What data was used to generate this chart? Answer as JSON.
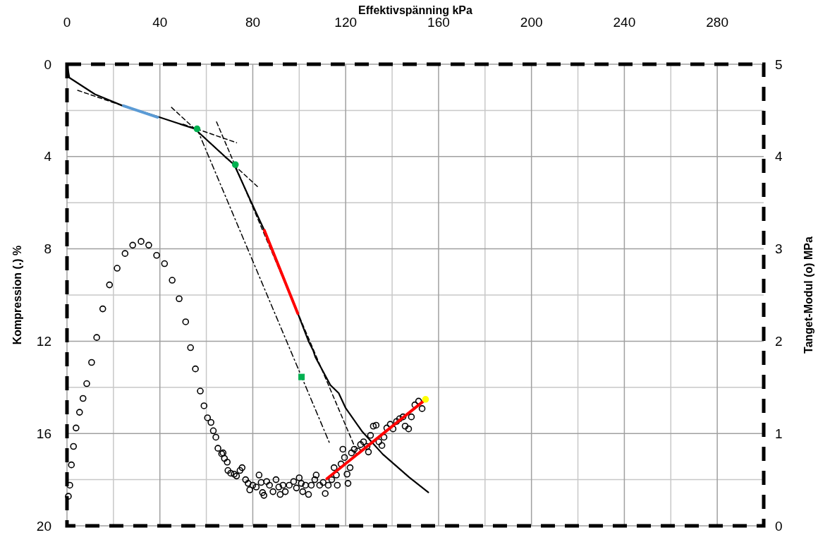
{
  "chart_data": {
    "type": "line",
    "xlabel": "Effektivspänning   kPa",
    "ylabel": "Kompression (.)   %",
    "y2label": "Tanget-Modul (o)   MPa",
    "xlim": [
      0,
      300
    ],
    "xticks": [
      0,
      40,
      80,
      120,
      160,
      200,
      240,
      280
    ],
    "ylim": [
      20,
      0
    ],
    "yticks": [
      0,
      4,
      8,
      12,
      16,
      20
    ],
    "y2lim": [
      0,
      5
    ],
    "y2ticks": [
      0,
      1,
      2,
      3,
      4,
      5
    ],
    "grid": true,
    "series": [
      {
        "color": "#000000",
        "line_style": "solid",
        "x": [
          0,
          1,
          12,
          24,
          40,
          55,
          68,
          72,
          79,
          85,
          99.4,
          104,
          106,
          107,
          113.4,
          117,
          120,
          127,
          136,
          147.4,
          155.6
        ],
        "values": [
          0,
          0.58,
          1.3,
          1.8,
          2.3,
          2.8,
          4.0,
          4.35,
          5.9,
          7.2,
          10.8,
          12.0,
          12.4,
          12.7,
          13.9,
          14.25,
          14.9,
          15.9,
          16.9,
          17.9,
          18.55
        ]
      },
      {
        "color": "#000000",
        "line_style": "dashed",
        "x": [
          4.6,
          24
        ],
        "values": [
          1.13,
          1.8
        ]
      },
      {
        "color": "#000000",
        "line_style": "dashed",
        "x": [
          45,
          82
        ],
        "values": [
          1.87,
          5.3
        ]
      },
      {
        "color": "#000000",
        "line_style": "dashed",
        "x": [
          64.4,
          124
        ],
        "values": [
          2.5,
          16.6
        ]
      },
      {
        "color": "#000000",
        "line_style": "dashed",
        "x": [
          50,
          73
        ],
        "values": [
          2.6,
          3.4
        ]
      },
      {
        "color": "#000000",
        "line_style": "dotted",
        "x": [
          56,
          113
        ],
        "values": [
          2.8,
          16.4
        ]
      },
      {
        "color": "#5b9bd5",
        "line_style": "solid",
        "x": [
          24.3,
          39
        ],
        "values": [
          1.8,
          2.3
        ]
      },
      {
        "color": "#ff0000",
        "line_style": "solid",
        "x": [
          85,
          99.4
        ],
        "values": [
          7.2,
          10.8
        ]
      },
      {
        "type": "scatter",
        "color": "#00b050",
        "marker": "circle",
        "x": [
          56,
          72.5
        ],
        "values": [
          2.8,
          4.35
        ]
      },
      {
        "type": "scatter",
        "color": "#00b050",
        "marker": "square",
        "x": [
          101
        ],
        "values": [
          13.55
        ]
      },
      {
        "type": "scatter",
        "color": "#000000",
        "marker": "circle",
        "axis": "y2",
        "x": [
          0.6,
          1.2,
          1.9,
          2.8,
          3.9,
          5.4,
          6.9,
          8.5,
          10.6,
          12.8,
          15.4,
          18.3,
          21.6,
          25,
          28.3,
          31.9,
          35.2,
          38.6,
          42,
          45.3,
          48.3,
          51.1,
          53.2,
          55.3,
          57.4,
          59,
          60.5,
          62,
          63,
          64.1,
          65,
          66.6,
          67.2,
          67.8,
          69,
          69.3,
          70.5,
          72,
          73,
          74.5,
          75.4,
          76.9,
          78,
          78.7,
          80,
          81.5,
          82.7,
          83.6,
          84.2,
          84.8,
          86,
          87.2,
          88.7,
          90,
          91.2,
          91.8,
          93,
          94,
          95.7,
          97.6,
          98.8,
          100,
          100.9,
          101.5,
          102.7,
          104,
          105.2,
          106.7,
          107.3,
          108.8,
          110.3,
          111.2,
          112.5,
          114,
          115,
          116,
          116.4,
          118,
          118.8,
          119.5,
          120.6,
          121,
          121.9,
          122.5,
          123.7,
          125.2,
          126.4,
          127.7,
          129.2,
          129.8,
          130.7,
          131.9,
          133.1,
          134.3,
          135.6,
          136.5,
          137.7,
          139.2,
          140.4,
          141.9,
          143.2,
          144.7,
          145.6,
          147.1,
          148.3,
          149.8,
          151.4,
          152.9
        ],
        "values": [
          0.32,
          0.44,
          0.66,
          0.86,
          1.06,
          1.23,
          1.38,
          1.54,
          1.77,
          2.04,
          2.35,
          2.61,
          2.79,
          2.95,
          3.04,
          3.08,
          3.04,
          2.93,
          2.84,
          2.66,
          2.46,
          2.21,
          1.93,
          1.7,
          1.46,
          1.3,
          1.17,
          1.12,
          1.03,
          0.96,
          0.84,
          0.78,
          0.79,
          0.73,
          0.69,
          0.6,
          0.57,
          0.56,
          0.54,
          0.6,
          0.63,
          0.5,
          0.46,
          0.39,
          0.44,
          0.42,
          0.55,
          0.47,
          0.36,
          0.33,
          0.48,
          0.44,
          0.37,
          0.5,
          0.42,
          0.34,
          0.44,
          0.37,
          0.44,
          0.48,
          0.41,
          0.52,
          0.46,
          0.37,
          0.44,
          0.34,
          0.44,
          0.5,
          0.55,
          0.44,
          0.47,
          0.35,
          0.44,
          0.5,
          0.63,
          0.55,
          0.44,
          0.67,
          0.83,
          0.74,
          0.56,
          0.46,
          0.63,
          0.79,
          0.83,
          0.81,
          0.88,
          0.91,
          0.86,
          0.8,
          0.98,
          1.08,
          1.09,
          0.91,
          0.87,
          0.96,
          1.06,
          1.1,
          1.05,
          1.13,
          1.16,
          1.18,
          1.08,
          1.05,
          1.18,
          1.31,
          1.35,
          1.27
        ]
      },
      {
        "color": "#ff0000",
        "line_style": "solid",
        "axis": "y2",
        "x": [
          111.9,
          153.5
        ],
        "values": [
          0.51,
          1.35
        ]
      },
      {
        "type": "scatter",
        "color": "#ffff00",
        "marker": "circle",
        "axis": "y2",
        "x": [
          154.4
        ],
        "values": [
          1.37
        ]
      }
    ]
  }
}
